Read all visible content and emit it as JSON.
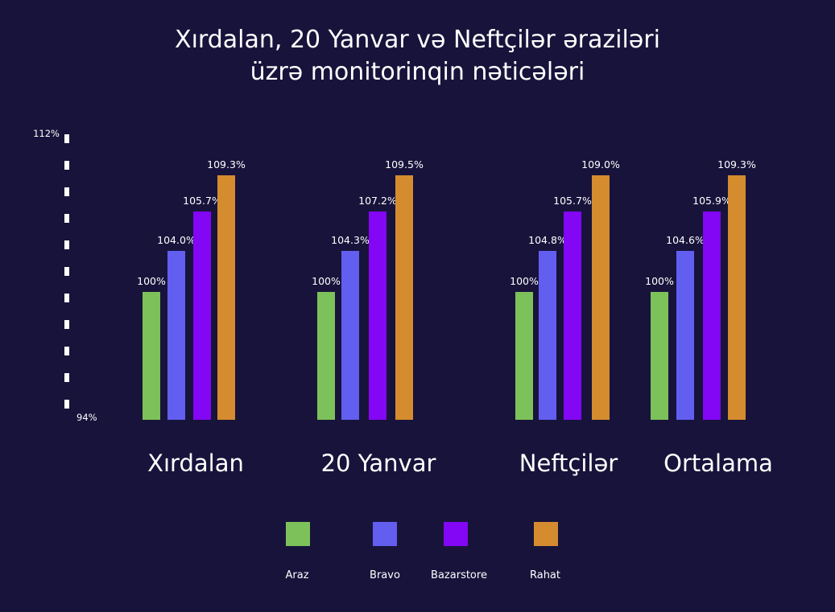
{
  "chart_data": {
    "type": "bar",
    "title_lines": [
      "Xırdalan, 20 Yanvar və Neftçilər əraziləri",
      "üzrə monitorinqin nəticələri"
    ],
    "categories": [
      "Xırdalan",
      "20 Yanvar",
      "Neftçilər",
      "Ortalama"
    ],
    "series": [
      {
        "name": "Araz",
        "color": "#7dc15a",
        "values": [
          100,
          100,
          100,
          100
        ],
        "labels": [
          "100%",
          "100%",
          "100%",
          "100%"
        ]
      },
      {
        "name": "Bravo",
        "color": "#625ef0",
        "values": [
          104.0,
          104.3,
          104.8,
          104.6
        ],
        "labels": [
          "104.0%",
          "104.3%",
          "104.8%",
          "104.6%"
        ]
      },
      {
        "name": "Bazarstore",
        "color": "#8306f5",
        "values": [
          105.7,
          107.2,
          105.7,
          105.9
        ],
        "labels": [
          "105.7%",
          "107.2%",
          "105.7%",
          "105.9%"
        ]
      },
      {
        "name": "Rahat",
        "color": "#d58c2e",
        "values": [
          109.3,
          109.5,
          109.0,
          109.3
        ],
        "labels": [
          "109.3%",
          "109.5%",
          "109.0%",
          "109.3%"
        ]
      }
    ],
    "ylim": [
      94,
      112
    ],
    "ytick_labels": [
      "112%",
      "94%"
    ],
    "legend_position": "bottom",
    "grid": false
  }
}
